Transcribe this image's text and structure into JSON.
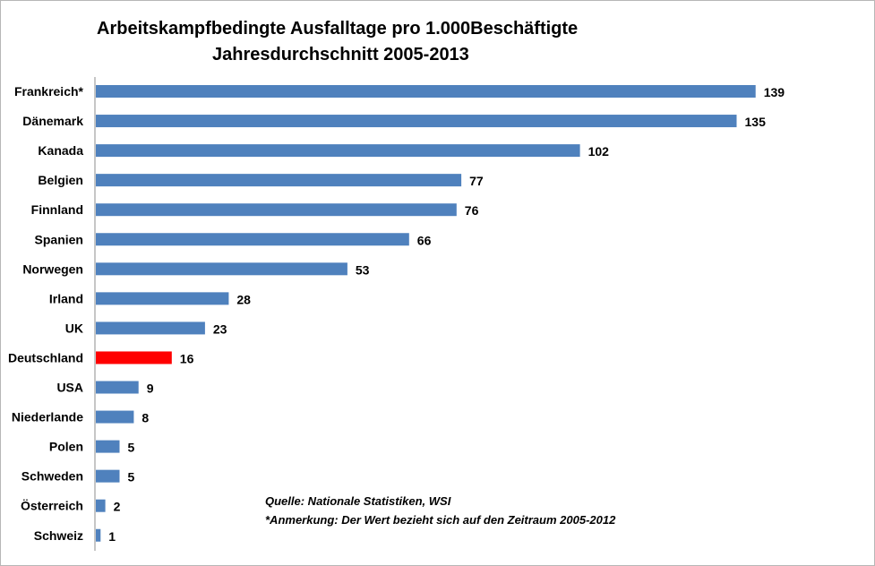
{
  "chart_data": {
    "type": "bar",
    "orientation": "horizontal",
    "title": "Arbeitskampfbedingte Ausfalltage pro 1.000Beschäftigte",
    "subtitle": "Jahresdurchschnitt 2005-2013",
    "categories": [
      "Frankreich*",
      "Dänemark",
      "Kanada",
      "Belgien",
      "Finnland",
      "Spanien",
      "Norwegen",
      "Irland",
      "UK",
      "Deutschland",
      "USA",
      "Niederlande",
      "Polen",
      "Schweden",
      "Österreich",
      "Schweiz"
    ],
    "values": [
      139,
      135,
      102,
      77,
      76,
      66,
      53,
      28,
      23,
      16,
      9,
      8,
      5,
      5,
      2,
      1
    ],
    "value_labels": [
      "139",
      "135",
      "102",
      "77",
      "76",
      "66",
      "53",
      "28",
      "23",
      "16",
      "9",
      "8",
      "5",
      "5",
      "2",
      "1"
    ],
    "xlim": [
      0,
      140
    ],
    "grid": false,
    "bar_color": "#4f81bd",
    "highlight_color": "#ff0000",
    "highlight_category": "Deutschland"
  },
  "notes": {
    "source": "Quelle: Nationale Statistiken, WSI",
    "remark": "*Anmerkung: Der Wert bezieht sich auf den Zeitraum 2005-2012"
  }
}
